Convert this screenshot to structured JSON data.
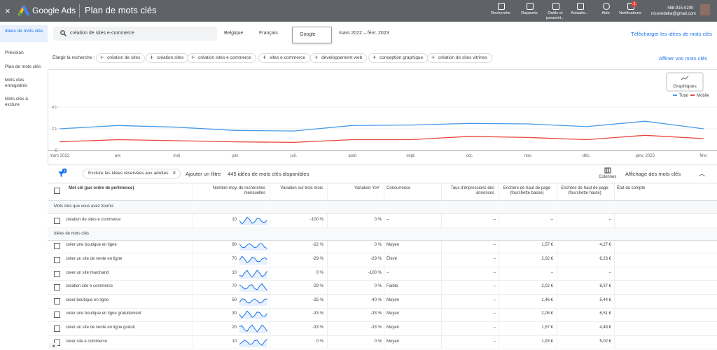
{
  "topbar": {
    "product": "Google Ads",
    "page_title": "Plan de mots clés",
    "tools": [
      "Recherche",
      "Rapports",
      "Outils et paramèt...",
      "Actualis...",
      "Aide",
      "Notifications"
    ],
    "notification_badge": "1",
    "phone": "488-915-0200",
    "email": "nicovedeka@gmail.com"
  },
  "sidebar": {
    "items": [
      "Idées de mots clés",
      "Prévision",
      "Plan de mots clés",
      "Mots clés enregistrés",
      "Mots clés à exclure"
    ]
  },
  "search": {
    "query": "création de sites e-commerce",
    "location": "Belgique",
    "language": "Français",
    "network": "Google",
    "date_range": "mars 2022 – févr. 2023",
    "download": "Télécharger les idées de mots clés"
  },
  "broaden": {
    "label": "Élargir la recherche :",
    "chips": [
      "création de sites",
      "création sites",
      "création sites e commerce",
      "sites e commerce",
      "développement web",
      "conception graphique",
      "création de sites vitrines"
    ],
    "refine": "Affiner vos mots clés"
  },
  "chart": {
    "type": "line",
    "button": "Graphiques",
    "categories": [
      "mars 2022",
      "avr.",
      "mai",
      "juin",
      "juil.",
      "août",
      "sept.",
      "oct.",
      "nov.",
      "déc.",
      "janv. 2023",
      "févr."
    ],
    "series": [
      {
        "name": "Total",
        "color": "#4a9ae8",
        "values": [
          2000,
          2300,
          2150,
          1850,
          1800,
          2300,
          2350,
          2500,
          2450,
          2200,
          2700,
          2000
        ]
      },
      {
        "name": "Mobile",
        "color": "#e8473c",
        "values": [
          800,
          1000,
          900,
          800,
          750,
          1000,
          1000,
          1300,
          1200,
          1000,
          1400,
          1100
        ]
      }
    ],
    "ylim": [
      0,
      4000
    ],
    "yticks": [
      0,
      {
        "value": 2000,
        "label": "2 k"
      },
      {
        "value": 4000,
        "label": "4 k"
      }
    ],
    "grid": true
  },
  "filters": {
    "badge": "1",
    "chip": "Exclure les idées réservées aux adultes",
    "add_filter": "Ajouter un filtre",
    "count": "445 idées de mots clés disponibles",
    "columns": "Colonnes",
    "view": "Affichage des mots clés"
  },
  "table": {
    "headers": [
      "Mot clé (par ordre de pertinence)",
      "Nombre moy. de recherches mensuelles",
      "Variation sur trois mois",
      "Variation YoY",
      "Concurrence",
      "Taux d'impressions des annonces",
      "Enchère de haut de page (fourchette basse)",
      "Enchère de haut de page (fourchette haute)",
      "État du compte"
    ],
    "sections": [
      {
        "title": "Mots clés que vous avez fournis",
        "rows": [
          [
            "création de sites e commerce",
            "10",
            "-100 %",
            "0 %",
            "–",
            "–",
            "–",
            "–"
          ]
        ]
      },
      {
        "title": "Idées de mots clés",
        "rows": [
          [
            "créer une boutique en ligne",
            "90",
            "-22 %",
            "0 %",
            "Moyen",
            "–",
            "1,57 €",
            "4,27 €"
          ],
          [
            "créer un site de vente en ligne",
            "70",
            "-29 %",
            "-29 %",
            "Élevé",
            "–",
            "2,02 €",
            "6,23 €"
          ],
          [
            "creer un site marchand",
            "10",
            "0 %",
            "-100 %",
            "–",
            "–",
            "–",
            "–"
          ],
          [
            "creation site e commerce",
            "70",
            "-29 %",
            "0 %",
            "Faible",
            "–",
            "2,02 €",
            "8,37 €"
          ],
          [
            "creer boutique en ligne",
            "50",
            "-25 %",
            "-40 %",
            "Moyen",
            "–",
            "1,46 €",
            "5,44 €"
          ],
          [
            "créer une boutique en ligne gratuitement",
            "30",
            "-33 %",
            "-33 %",
            "Moyen",
            "–",
            "2,08 €",
            "6,51 €"
          ],
          [
            "créer un site de vente en ligne gratuit",
            "20",
            "-33 %",
            "-33 %",
            "Moyen",
            "–",
            "1,57 €",
            "4,48 €"
          ],
          [
            "creer site e commerce",
            "10",
            "0 %",
            "0 %",
            "Moyen",
            "–",
            "1,93 €",
            "5,02 €"
          ]
        ]
      }
    ]
  }
}
